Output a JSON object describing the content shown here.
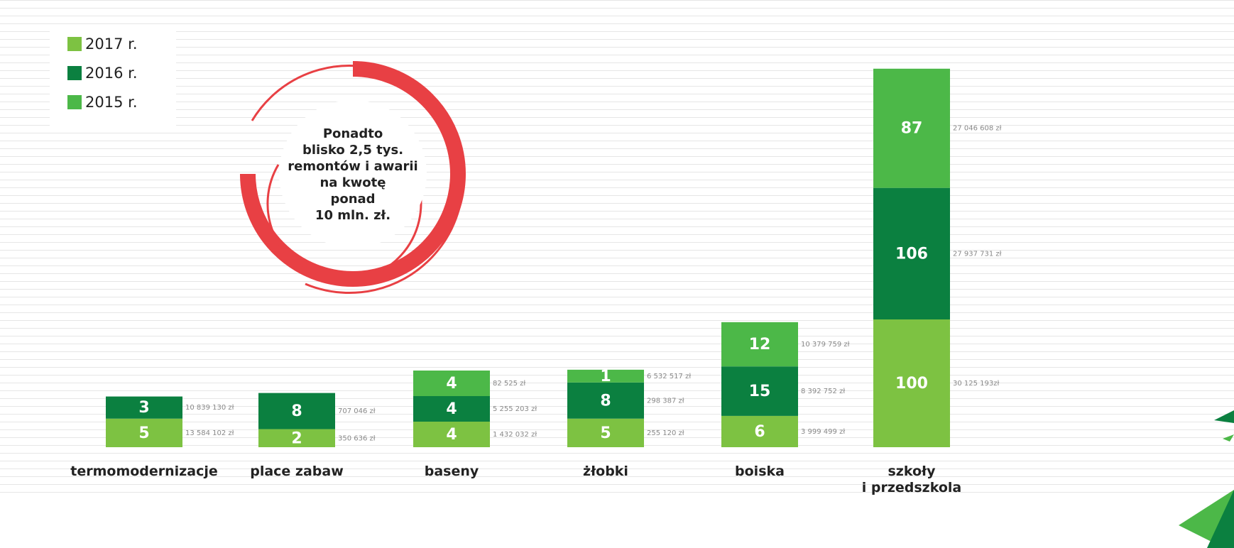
{
  "chart_data": {
    "type": "stacked-bar",
    "annotation": [
      "Ponadto",
      "blisko 2,5 tys.",
      "remontów i awarii",
      "na kwotę",
      "ponad",
      "10 mln. zł."
    ],
    "categories": [
      "termomodernizacje",
      "place zabaw",
      "baseny",
      "żłobki",
      "boiska",
      "szkoły\ni przedszkola"
    ],
    "series": [
      {
        "name": "2017 r.",
        "color": "#7dc242",
        "values": [
          5,
          2,
          4,
          5,
          6,
          100
        ],
        "amount_labels": [
          "13 584 102 zł",
          "350 636 zł",
          "1 432 032 zł",
          "255 120 zł",
          "3 999 499 zł",
          "30 125 193zł"
        ]
      },
      {
        "name": "2016 r.",
        "color": "#0b8040",
        "values": [
          3,
          8,
          4,
          8,
          15,
          106
        ],
        "amount_labels": [
          "10 839 130 zł",
          "707 046 zł",
          "5 255 203 zł",
          "298 387 zł",
          "8 392 752 zł",
          "27 937 731 zł"
        ]
      },
      {
        "name": "2015 r.",
        "color": "#4cb848",
        "values": [
          null,
          null,
          4,
          1,
          12,
          87
        ],
        "amount_labels": [
          null,
          null,
          "82 525 zł",
          "6 532 517 zł",
          "10 379 759 zł",
          "27 046 608 zł"
        ]
      }
    ]
  }
}
